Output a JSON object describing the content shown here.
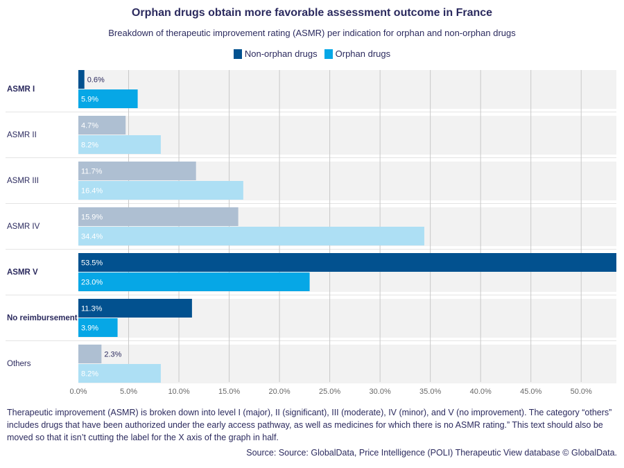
{
  "chart_data": {
    "type": "bar",
    "orientation": "horizontal",
    "title": "Orphan drugs obtain more favorable assessment outcome in France",
    "subtitle": "Breakdown of therapeutic improvement rating (ASMR) per indication for orphan and non-orphan drugs",
    "categories": [
      "ASMR I",
      "ASMR II",
      "ASMR III",
      "ASMR IV",
      "ASMR V",
      "No reimbursement",
      "Others"
    ],
    "highlighted": [
      true,
      false,
      false,
      false,
      true,
      true,
      false
    ],
    "series": [
      {
        "name": "Non-orphan drugs",
        "values": [
          0.6,
          4.7,
          11.7,
          15.9,
          53.5,
          11.3,
          2.3
        ],
        "labels": [
          "0.6%",
          "4.7%",
          "11.7%",
          "15.9%",
          "53.5%",
          "11.3%",
          "2.3%"
        ],
        "color": "#02518f",
        "muted_color": "#aebfd2"
      },
      {
        "name": "Orphan drugs",
        "values": [
          5.9,
          8.2,
          16.4,
          34.4,
          23.0,
          3.9,
          8.2
        ],
        "labels": [
          "5.9%",
          "8.2%",
          "16.4%",
          "34.4%",
          "23.0%",
          "3.9%",
          "8.2%"
        ],
        "color": "#06a7e6",
        "muted_color": "#addff4"
      }
    ],
    "xlim": [
      0,
      53.5
    ],
    "xticks": [
      0,
      5,
      10,
      15,
      20,
      25,
      30,
      35,
      40,
      45,
      50
    ],
    "xtick_labels": [
      "0.0%",
      "5.0%",
      "10.0%",
      "15.0%",
      "20.0%",
      "25.0%",
      "30.0%",
      "35.0%",
      "40.0%",
      "45.0%",
      "50.0%"
    ],
    "grid": true,
    "legend_position": "top-center",
    "band_color": "#f2f2f2",
    "grid_color": "#c8c8c8"
  },
  "footnote": "Therapeutic improvement (ASMR) is broken down into level I (major), II (significant), III (moderate), IV (minor), and V (no improvement). The category “others” includes drugs that have been authorized under the early access pathway, as well as medicines for which there is no ASMR rating.” This text should also be moved so that it isn’t cutting the label for the X axis of the graph in half.",
  "source": "Source: Source: GlobalData, Price Intelligence (POLI) Therapeutic View database © GlobalData."
}
